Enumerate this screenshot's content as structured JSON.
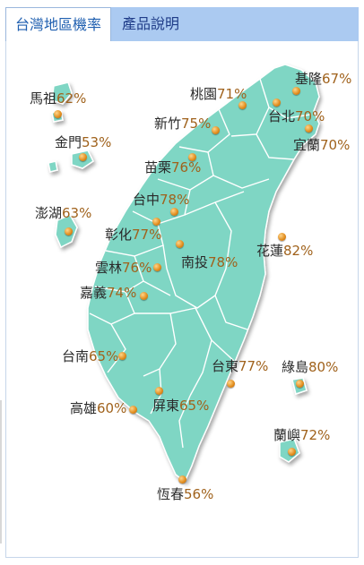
{
  "tabs": [
    {
      "label": "台灣地區機率",
      "active": true
    },
    {
      "label": "產品說明",
      "active": false
    }
  ],
  "regions": [
    {
      "name": "基隆",
      "value": "67%"
    },
    {
      "name": "桃園",
      "value": "71%"
    },
    {
      "name": "台北",
      "value": "70%"
    },
    {
      "name": "新竹",
      "value": "75%"
    },
    {
      "name": "宜蘭",
      "value": "70%"
    },
    {
      "name": "苗栗",
      "value": "76%"
    },
    {
      "name": "台中",
      "value": "78%"
    },
    {
      "name": "彰化",
      "value": "77%"
    },
    {
      "name": "南投",
      "value": "78%"
    },
    {
      "name": "花蓮",
      "value": "82%"
    },
    {
      "name": "雲林",
      "value": "76%"
    },
    {
      "name": "嘉義",
      "value": "74%"
    },
    {
      "name": "台南",
      "value": "65%"
    },
    {
      "name": "台東",
      "value": "77%"
    },
    {
      "name": "綠島",
      "value": "80%"
    },
    {
      "name": "高雄",
      "value": "60%"
    },
    {
      "name": "屏東",
      "value": "65%"
    },
    {
      "name": "蘭嶼",
      "value": "72%"
    },
    {
      "name": "恆春",
      "value": "56%"
    },
    {
      "name": "馬祖",
      "value": "62%"
    },
    {
      "name": "金門",
      "value": "53%"
    },
    {
      "name": "澎湖",
      "value": "63%"
    }
  ],
  "colors": {
    "land": "#7fd6c4",
    "land_edge": "#5fbfae",
    "tab_bar": "#abcaf1",
    "value_text": "#a0621c"
  }
}
